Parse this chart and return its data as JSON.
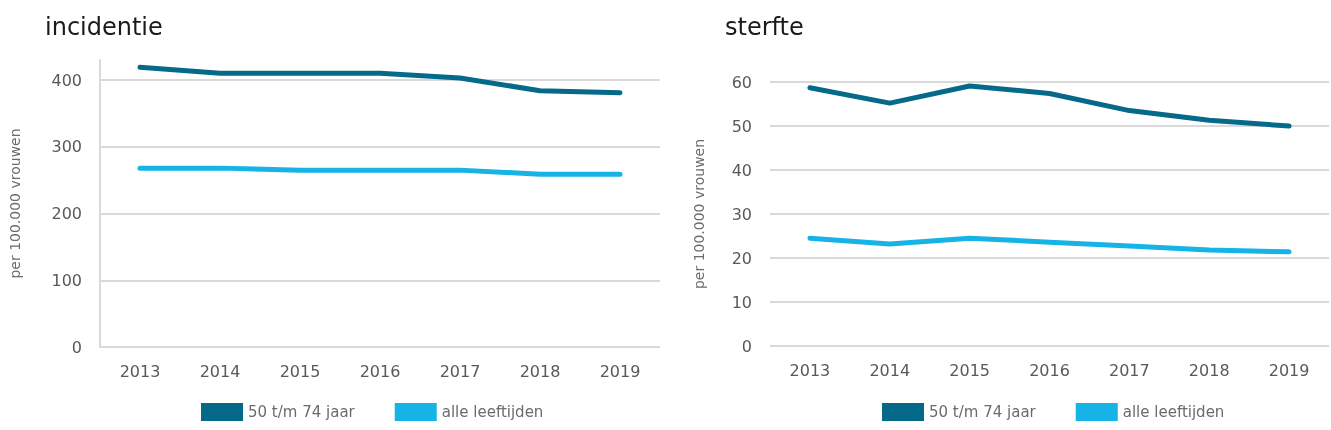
{
  "chart_data": [
    {
      "type": "line",
      "title": "incidentie",
      "ylabel": "per 100.000 vrouwen",
      "categories": [
        "2013",
        "2014",
        "2015",
        "2016",
        "2017",
        "2018",
        "2019"
      ],
      "series": [
        {
          "name": "50 t/m 74 jaar",
          "color": "#05698a",
          "values": [
            419,
            410,
            410,
            410,
            403,
            384,
            381
          ]
        },
        {
          "name": "alle leeftijden",
          "color": "#16b4e6",
          "values": [
            268,
            268,
            265,
            265,
            265,
            259,
            259
          ]
        }
      ],
      "ylim": [
        0,
        430
      ],
      "yticks": [
        0,
        100,
        200,
        300,
        400
      ],
      "grid": "y",
      "legend": "bottom"
    },
    {
      "type": "line",
      "title": "sterfte",
      "ylabel": "per 100.000 vrouwen",
      "categories": [
        "2013",
        "2014",
        "2015",
        "2016",
        "2017",
        "2018",
        "2019"
      ],
      "series": [
        {
          "name": "50 t/m 74 jaar",
          "color": "#05698a",
          "values": [
            58.7,
            55.2,
            59.1,
            57.4,
            53.5,
            51.3,
            50.0
          ]
        },
        {
          "name": "alle leeftijden",
          "color": "#16b4e6",
          "values": [
            24.5,
            23.2,
            24.5,
            23.6,
            22.7,
            21.8,
            21.4
          ]
        }
      ],
      "ylim": [
        0,
        60
      ],
      "yticks": [
        0,
        10,
        20,
        30,
        40,
        50,
        60
      ],
      "grid": "y",
      "legend": "bottom"
    }
  ]
}
